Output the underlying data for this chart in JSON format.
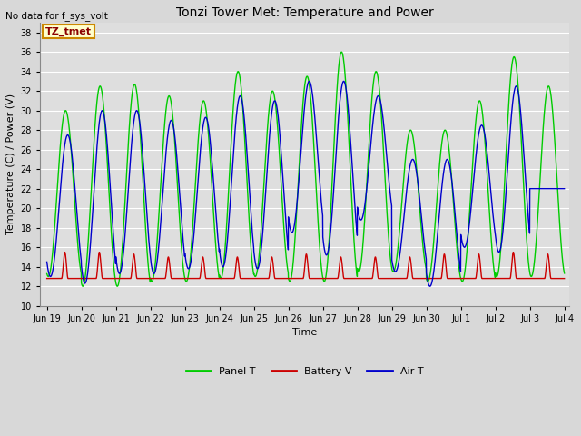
{
  "title": "Tonzi Tower Met: Temperature and Power",
  "ylabel": "Temperature (C) / Power (V)",
  "xlabel": "Time",
  "top_left_text": "No data for f_sys_volt",
  "legend_label_text": "TZ_tmet",
  "ylim": [
    10,
    39
  ],
  "yticks": [
    10,
    12,
    14,
    16,
    18,
    20,
    22,
    24,
    26,
    28,
    30,
    32,
    34,
    36,
    38
  ],
  "colors": {
    "panel_t": "#00CC00",
    "battery_v": "#CC0000",
    "air_t": "#0000CC",
    "background": "#DEDEDE",
    "grid": "#FFFFFF",
    "legend_box_fill": "#FFFFCC",
    "legend_box_edge": "#CC8800"
  },
  "x_tick_labels": [
    "Jun 19",
    "Jun 20",
    "Jun 21",
    "Jun 22",
    "Jun 23",
    "Jun 24",
    "Jun 25",
    "Jun 26",
    "Jun 27",
    "Jun 28",
    "Jun 29",
    "Jun 30",
    "Jul 1",
    "Jul 2",
    "Jul 3",
    "Jul 4"
  ],
  "legend_entries": [
    "Panel T",
    "Battery V",
    "Air T"
  ],
  "panel_t_peaks": [
    30.0,
    32.5,
    32.7,
    31.5,
    31.0,
    34.0,
    32.0,
    33.5,
    36.0,
    34.0,
    28.0,
    28.0,
    31.0,
    35.5,
    32.5
  ],
  "air_t_peaks": [
    27.5,
    30.0,
    30.0,
    29.0,
    29.3,
    31.5,
    31.0,
    33.0,
    33.0,
    31.5,
    25.0,
    25.0,
    28.5,
    32.5,
    22.0
  ],
  "panel_t_mins": [
    13.0,
    12.0,
    12.0,
    12.5,
    12.5,
    12.8,
    13.0,
    12.5,
    12.5,
    13.5,
    13.5,
    12.5,
    12.5,
    13.0,
    13.0
  ],
  "air_t_mins": [
    13.0,
    12.3,
    13.3,
    13.3,
    13.8,
    14.0,
    13.8,
    17.5,
    15.2,
    18.8,
    13.5,
    12.0,
    16.0,
    15.5,
    22.0
  ],
  "battery_v_peaks": [
    15.5,
    15.5,
    15.3,
    15.0,
    15.0,
    15.0,
    15.0,
    15.3,
    15.0,
    15.0,
    15.0,
    15.3,
    15.3,
    15.5,
    15.3
  ],
  "battery_v_base": 12.8,
  "peak_hour_panel": 13.0,
  "peak_hour_air": 14.5,
  "trough_hour": 4.0
}
